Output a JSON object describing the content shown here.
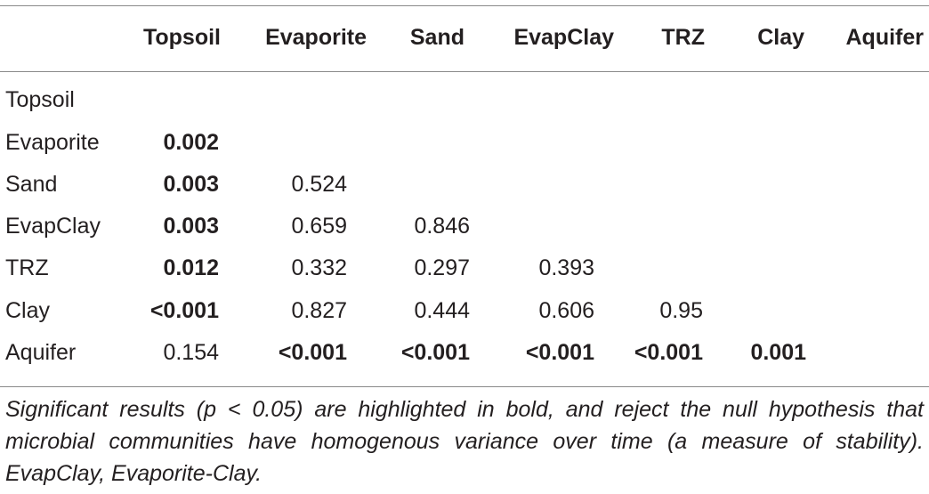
{
  "columns": [
    "Topsoil",
    "Evaporite",
    "Sand",
    "EvapClay",
    "TRZ",
    "Clay",
    "Aquifer"
  ],
  "rows": [
    {
      "label": "Topsoil",
      "cells": []
    },
    {
      "label": "Evaporite",
      "cells": [
        {
          "v": "0.002",
          "bold": true
        }
      ]
    },
    {
      "label": "Sand",
      "cells": [
        {
          "v": "0.003",
          "bold": true
        },
        {
          "v": "0.524",
          "bold": false
        }
      ]
    },
    {
      "label": "EvapClay",
      "cells": [
        {
          "v": "0.003",
          "bold": true
        },
        {
          "v": "0.659",
          "bold": false
        },
        {
          "v": "0.846",
          "bold": false
        }
      ]
    },
    {
      "label": "TRZ",
      "cells": [
        {
          "v": "0.012",
          "bold": true
        },
        {
          "v": "0.332",
          "bold": false
        },
        {
          "v": "0.297",
          "bold": false
        },
        {
          "v": "0.393",
          "bold": false
        }
      ]
    },
    {
      "label": "Clay",
      "cells": [
        {
          "v": "<0.001",
          "bold": true
        },
        {
          "v": "0.827",
          "bold": false
        },
        {
          "v": "0.444",
          "bold": false
        },
        {
          "v": "0.606",
          "bold": false
        },
        {
          "v": "0.95",
          "bold": false
        }
      ]
    },
    {
      "label": "Aquifer",
      "cells": [
        {
          "v": "0.154",
          "bold": false
        },
        {
          "v": "<0.001",
          "bold": true
        },
        {
          "v": "<0.001",
          "bold": true
        },
        {
          "v": "<0.001",
          "bold": true
        },
        {
          "v": "<0.001",
          "bold": true
        },
        {
          "v": "0.001",
          "bold": true
        }
      ]
    }
  ],
  "footnote": "Significant results (p < 0.05) are highlighted in bold, and reject the null hypothesis that microbial communities have homogenous variance over time (a measure of stability). EvapClay, Evaporite-Clay."
}
